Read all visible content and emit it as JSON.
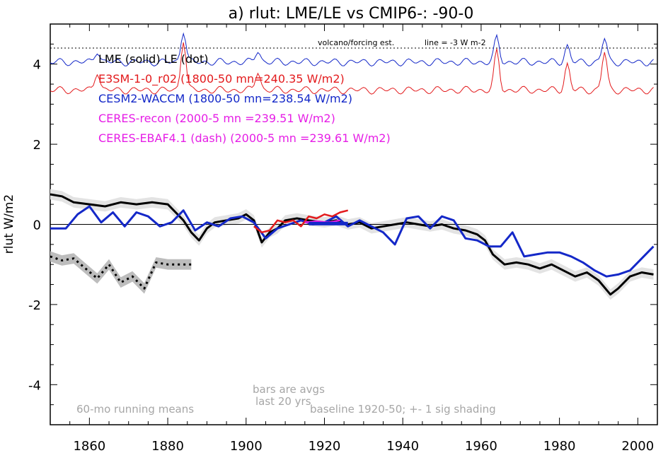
{
  "chart_data": {
    "type": "line",
    "title": "a) rlut: LME/LE vs CMIP6-: -90-0",
    "ylabel": "rlut W/m2",
    "xlabel": "",
    "xlim": [
      1850,
      2005
    ],
    "ylim": [
      -5,
      5
    ],
    "xticks": [
      1860,
      1880,
      1900,
      1920,
      1940,
      1960,
      1980,
      2000
    ],
    "yticks": [
      -4,
      -2,
      0,
      2,
      4
    ],
    "legend": {
      "header": "LME (solid)   LE (dot)",
      "entries": [
        {
          "label": "E3SM-1-0_r02 (1800-50 mn=240.35 W/m2)",
          "color": "#e31a1c"
        },
        {
          "label": "CESM2-WACCM (1800-50 mn=238.54 W/m2)",
          "color": "#1428c8"
        },
        {
          "label": "CERES-recon (2000-5 mn =239.51 W/m2)",
          "color": "#e61ee6"
        },
        {
          "label": "CERES-EBAF4.1 (dash) (2000-5 mn =239.61 W/m2)",
          "color": "#e61ee6"
        }
      ]
    },
    "volcano_labels": {
      "left": "volcano/forcing est.",
      "right": "line = -3 W m-2"
    },
    "annotations": {
      "running_means": "60-mo running means",
      "bars_line1": "bars are avgs",
      "bars_line2": "last 20 yrs",
      "baseline": "baseline 1920-50; +- 1 sig shading"
    },
    "series": [
      {
        "name": "LME (solid)",
        "color": "#000000",
        "x": [
          1850,
          1853,
          1856,
          1860,
          1864,
          1868,
          1872,
          1876,
          1880,
          1884,
          1886,
          1888,
          1890,
          1892,
          1895,
          1898,
          1900,
          1902,
          1904,
          1906,
          1908,
          1910,
          1913,
          1916,
          1920,
          1923,
          1926,
          1929,
          1932,
          1935,
          1938,
          1941,
          1944,
          1947,
          1950,
          1953,
          1956,
          1959,
          1961,
          1963,
          1966,
          1969,
          1972,
          1975,
          1978,
          1981,
          1984,
          1987,
          1990,
          1993,
          1995,
          1998,
          2001,
          2004
        ],
        "y": [
          0.75,
          0.7,
          0.55,
          0.5,
          0.45,
          0.55,
          0.5,
          0.55,
          0.5,
          0.1,
          -0.2,
          -0.4,
          -0.1,
          0.05,
          0.1,
          0.15,
          0.25,
          0.1,
          -0.45,
          -0.2,
          -0.1,
          0.1,
          0.15,
          0.1,
          0.05,
          0.1,
          0.0,
          0.05,
          -0.1,
          -0.05,
          0.0,
          0.05,
          0.0,
          -0.05,
          0.0,
          -0.1,
          -0.15,
          -0.25,
          -0.4,
          -0.75,
          -1.0,
          -0.95,
          -1.0,
          -1.1,
          -1.0,
          -1.15,
          -1.3,
          -1.2,
          -1.4,
          -1.75,
          -1.6,
          -1.3,
          -1.2,
          -1.25
        ]
      },
      {
        "name": "LE (dot)",
        "color": "#000000",
        "x": [
          1850,
          1853,
          1856,
          1859,
          1862,
          1865,
          1868,
          1871,
          1874,
          1877,
          1880,
          1883,
          1886
        ],
        "y": [
          -0.8,
          -0.9,
          -0.85,
          -1.1,
          -1.35,
          -1.0,
          -1.45,
          -1.3,
          -1.6,
          -0.95,
          -1.0,
          -1.0,
          -1.0
        ]
      },
      {
        "name": "CESM2-WACCM",
        "color": "#1428c8",
        "x": [
          1850,
          1854,
          1857,
          1860,
          1863,
          1866,
          1869,
          1872,
          1875,
          1878,
          1881,
          1884,
          1887,
          1890,
          1893,
          1896,
          1899,
          1902,
          1905,
          1908,
          1911,
          1914,
          1917,
          1920,
          1923,
          1926,
          1929,
          1932,
          1935,
          1938,
          1941,
          1944,
          1947,
          1950,
          1953,
          1956,
          1959,
          1962,
          1965,
          1968,
          1971,
          1974,
          1977,
          1980,
          1983,
          1986,
          1989,
          1992,
          1995,
          1998,
          2001,
          2004
        ],
        "y": [
          -0.1,
          -0.1,
          0.25,
          0.45,
          0.05,
          0.3,
          -0.05,
          0.3,
          0.2,
          -0.05,
          0.05,
          0.35,
          -0.15,
          0.05,
          -0.05,
          0.15,
          0.2,
          0.05,
          -0.35,
          -0.1,
          0.0,
          0.1,
          0.0,
          0.05,
          0.2,
          -0.05,
          0.1,
          -0.05,
          -0.2,
          -0.5,
          0.15,
          0.2,
          -0.1,
          0.2,
          0.1,
          -0.35,
          -0.4,
          -0.55,
          -0.55,
          -0.2,
          -0.8,
          -0.75,
          -0.7,
          -0.7,
          -0.8,
          -0.95,
          -1.15,
          -1.3,
          -1.25,
          -1.15,
          -0.85,
          -0.55
        ]
      },
      {
        "name": "E3SM-1-0_r02",
        "color": "#e31a1c",
        "x": [
          1902,
          1904,
          1906,
          1908,
          1910,
          1912,
          1914,
          1916,
          1918,
          1920,
          1922,
          1924,
          1926
        ],
        "y": [
          -0.05,
          -0.2,
          -0.15,
          0.1,
          0.05,
          0.1,
          -0.05,
          0.2,
          0.15,
          0.25,
          0.2,
          0.3,
          0.35
        ]
      },
      {
        "name": "CERES-recon",
        "color": "#e61ee6",
        "x": [
          1915,
          1918,
          1921,
          1924
        ],
        "y": [
          0.05,
          0.08,
          0.05,
          0.1
        ]
      },
      {
        "name": "LE 20-yr avg bar",
        "color": "#1428c8",
        "x": [
          1916,
          1926
        ],
        "y": [
          0.02,
          0.02
        ]
      }
    ]
  }
}
